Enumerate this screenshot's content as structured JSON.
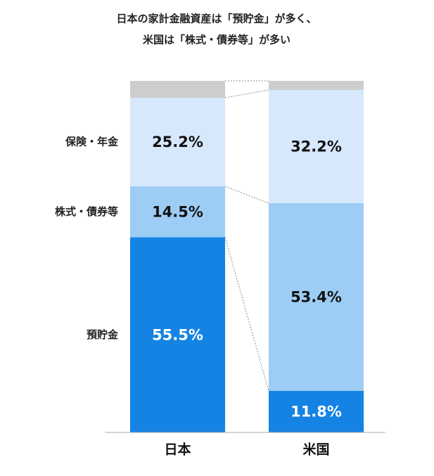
{
  "chart_data": {
    "type": "stacked_bar",
    "title": [
      "日本の家計金融資産は「預貯金」が多く、",
      "米国は「株式・債券等」が多い"
    ],
    "categories": [
      "日本",
      "米国"
    ],
    "series": [
      {
        "name": "預貯金",
        "color": "#1483e3",
        "values": [
          55.5,
          11.8
        ],
        "value_labels": [
          "55.5%",
          "11.8%"
        ],
        "label_color": "#ffffff"
      },
      {
        "name": "株式・債券等",
        "color": "#9dcdf5",
        "values": [
          14.5,
          53.4
        ],
        "value_labels": [
          "14.5%",
          "53.4%"
        ],
        "label_color": "#111111"
      },
      {
        "name": "保険・年金",
        "color": "#d7e8fc",
        "values": [
          25.2,
          32.2
        ],
        "value_labels": [
          "25.2%",
          "32.2%"
        ],
        "label_color": "#111111"
      },
      {
        "color": "#cdcdcd",
        "values": [
          4.8,
          2.6
        ]
      }
    ]
  }
}
